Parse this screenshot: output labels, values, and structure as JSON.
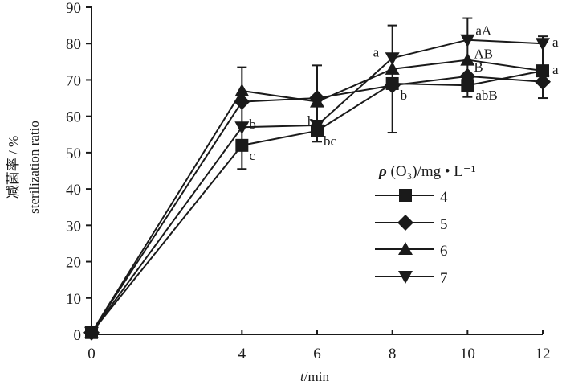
{
  "chart_data": {
    "type": "line",
    "title": "",
    "xlabel_italic": "t",
    "xlabel_rest": "/min",
    "ylabel_cn": "减菌率 / %",
    "ylabel_en": "sterilization ratio",
    "xlim": [
      0,
      12
    ],
    "ylim": [
      0,
      90
    ],
    "x_ticks": [
      0,
      4,
      6,
      8,
      10,
      12
    ],
    "y_ticks": [
      0,
      10,
      20,
      30,
      40,
      50,
      60,
      70,
      80,
      90
    ],
    "grid": false,
    "legend": {
      "title_rho": "ρ",
      "title_rest": " (O₃)/mg • L⁻¹",
      "placement": "center-right"
    },
    "x": [
      0,
      4,
      6,
      8,
      10,
      12
    ],
    "series": [
      {
        "name": "4",
        "marker": "square",
        "values": [
          0.5,
          52,
          56,
          69,
          68.5,
          72.5
        ]
      },
      {
        "name": "5",
        "marker": "diamond",
        "values": [
          0.5,
          64,
          65,
          68.5,
          71,
          69.5
        ]
      },
      {
        "name": "6",
        "marker": "triangle-up",
        "values": [
          0.5,
          67,
          64,
          73,
          75.5,
          72.5
        ]
      },
      {
        "name": "7",
        "marker": "triangle-down",
        "values": [
          0.5,
          57,
          57.5,
          76,
          81,
          80
        ]
      }
    ],
    "error_bars": [
      {
        "x": 4,
        "low": 45.5,
        "high": 73.5
      },
      {
        "x": 6,
        "low": 53,
        "high": 74
      },
      {
        "x": 8,
        "low": 55.5,
        "high": 85
      },
      {
        "x": 10,
        "low": 65.3,
        "high": 87
      },
      {
        "x": 12,
        "low": 65,
        "high": 82
      }
    ],
    "annotations": [
      {
        "text": "b",
        "x": 4,
        "y": 57
      },
      {
        "text": "c",
        "x": 4,
        "y": 52
      },
      {
        "text": "b",
        "x": 6,
        "y": 57.5
      },
      {
        "text": "bc",
        "x": 6,
        "y": 56
      },
      {
        "text": "a",
        "x": 8,
        "y": 76
      },
      {
        "text": "b",
        "x": 8,
        "y": 68.5
      },
      {
        "text": "aA",
        "x": 10,
        "y": 81
      },
      {
        "text": "AB",
        "x": 10,
        "y": 75.5
      },
      {
        "text": "B",
        "x": 10,
        "y": 71
      },
      {
        "text": "abB",
        "x": 10,
        "y": 68.5
      },
      {
        "text": "a",
        "x": 12,
        "y": 80
      },
      {
        "text": "a",
        "x": 12,
        "y": 72.5
      }
    ]
  }
}
